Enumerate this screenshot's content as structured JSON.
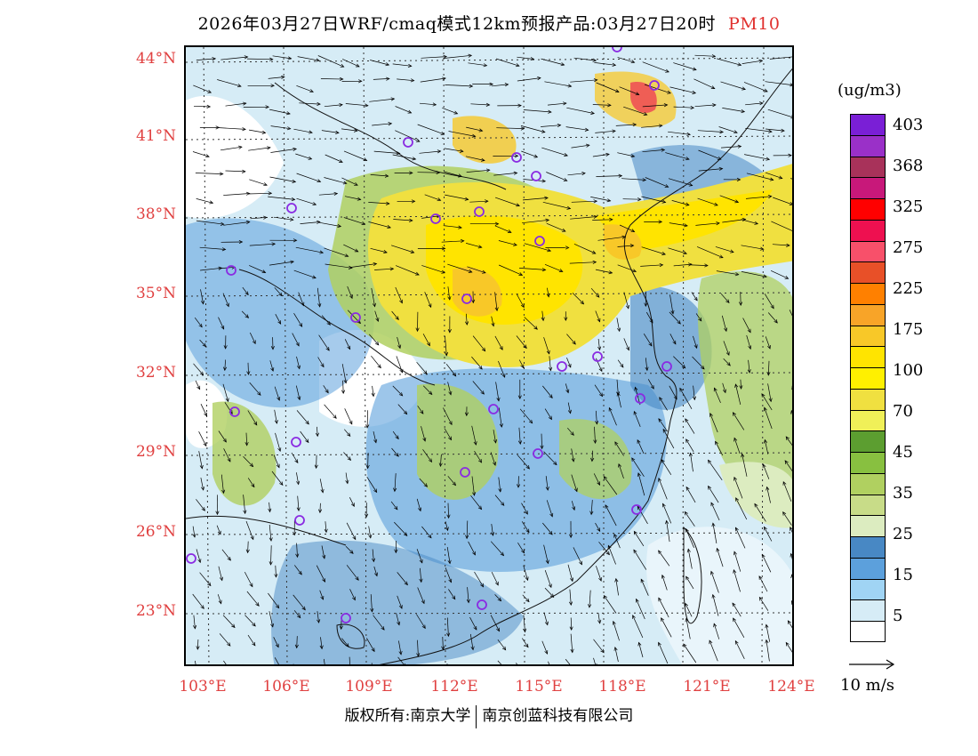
{
  "title": {
    "main": "2026年03月27日WRF/cmaq模式12km预报产品:03月27日20时",
    "pollutant": "PM10"
  },
  "axes": {
    "lat_labels": [
      "44°N",
      "41°N",
      "38°N",
      "35°N",
      "32°N",
      "29°N",
      "26°N",
      "23°N"
    ],
    "lon_labels": [
      "103°E",
      "106°E",
      "109°E",
      "112°E",
      "115°E",
      "118°E",
      "121°E",
      "124°E"
    ]
  },
  "colorbar": {
    "unit": "(ug/m3)",
    "labels": [
      "403",
      "368",
      "325",
      "275",
      "225",
      "175",
      "100",
      "70",
      "45",
      "35",
      "25",
      "15",
      "5"
    ],
    "colors": [
      "#7a1fd6",
      "#9a30c8",
      "#a8325a",
      "#c8187a",
      "#ff0000",
      "#ee1050",
      "#f8506a",
      "#e85028",
      "#ff8000",
      "#f8a428",
      "#f8c828",
      "#ffe400",
      "#fff000",
      "#f0e040",
      "#f0f058",
      "#5c9e30",
      "#88c040",
      "#b0d060",
      "#c8dc88",
      "#dcecc0",
      "#4888c4",
      "#5ca0dc",
      "#a0d4f4",
      "#d6ecf6",
      "#ffffff"
    ]
  },
  "vector_key": {
    "label": "10 m/s"
  },
  "footer": {
    "left": "版权所有:南京大学",
    "right": "南京创蓝科技有限公司"
  },
  "colors": {
    "axis_label": "#e04040",
    "title_pollutant": "#e0302e",
    "station": "#8a2be2"
  }
}
